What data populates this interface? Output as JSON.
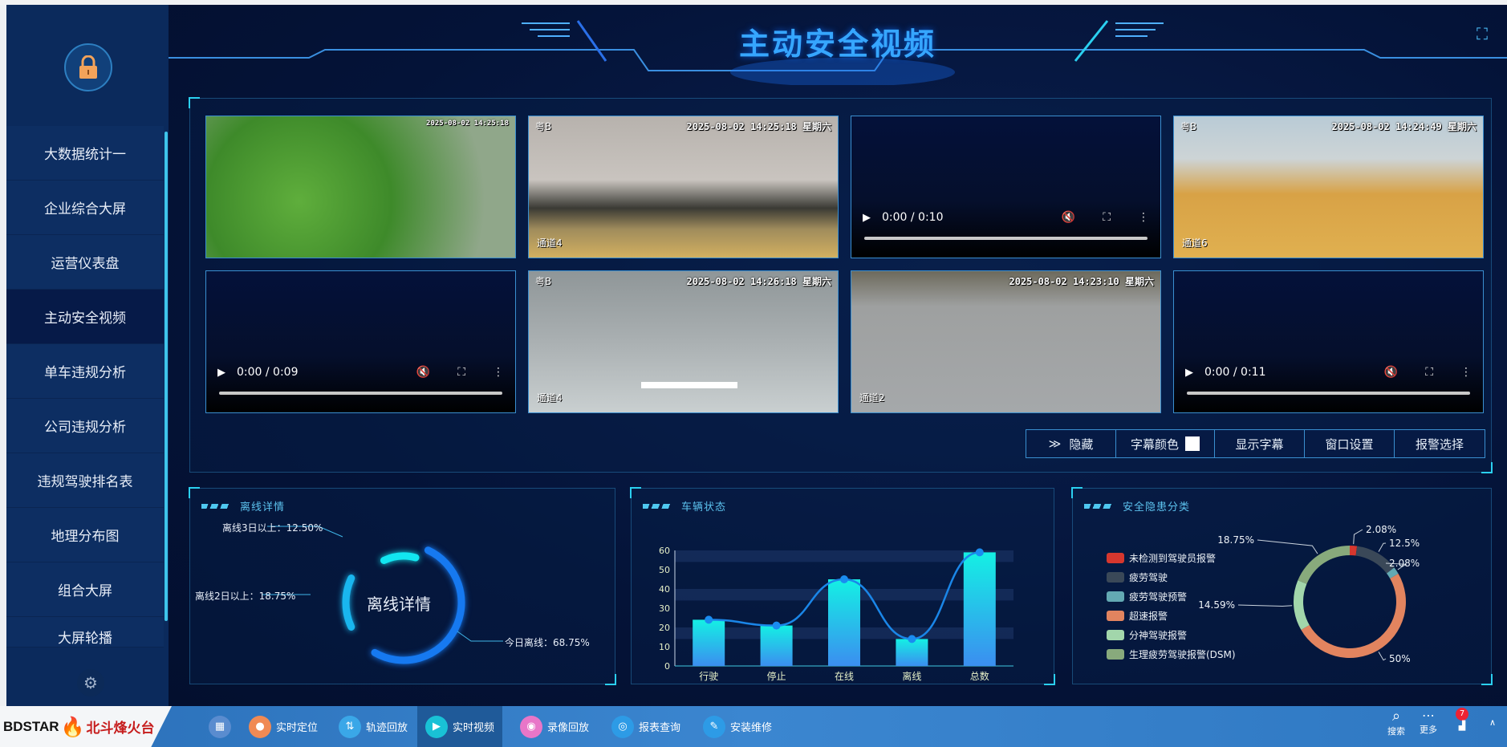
{
  "sidebar": {
    "lock_icon": "lock-icon",
    "items": [
      {
        "label": "大数据统计一"
      },
      {
        "label": "企业综合大屏"
      },
      {
        "label": "运营仪表盘"
      },
      {
        "label": "主动安全视频",
        "active": true
      },
      {
        "label": "单车违规分析"
      },
      {
        "label": "公司违规分析"
      },
      {
        "label": "违规驾驶排名表"
      },
      {
        "label": "地理分布图"
      },
      {
        "label": "组合大屏"
      },
      {
        "label": "大屏轮播"
      }
    ],
    "settings_icon": "gear-icon"
  },
  "header": {
    "title": "主动安全视频",
    "fullscreen_icon": "expand-icon"
  },
  "videos": [
    {
      "type": "image",
      "scene": "foliage",
      "timestamp": "2025-08-02 14:25:18",
      "plate": "",
      "channel": ""
    },
    {
      "type": "image",
      "scene": "sidewalk",
      "timestamp": "2025-08-02 14:25:18 星期六",
      "plate": "粤B",
      "channel": "通道4"
    },
    {
      "type": "player",
      "time": "0:00 / 0:10"
    },
    {
      "type": "image",
      "scene": "yellow-road",
      "timestamp": "2025-08-02 14:24:49 星期六",
      "plate": "粤B",
      "channel": "通道6"
    },
    {
      "type": "player",
      "time": "0:00 / 0:09"
    },
    {
      "type": "image",
      "scene": "grey-road",
      "timestamp": "2025-08-02 14:26:18 星期六",
      "plate": "粤B",
      "channel": "通道4"
    },
    {
      "type": "image",
      "scene": "asphalt",
      "timestamp": "2025-08-02 14:23:10 星期六",
      "plate": "",
      "channel": "通道2"
    },
    {
      "type": "player",
      "time": "0:00 / 0:11"
    }
  ],
  "toolbar": {
    "hide": "隐藏",
    "subtitle_color": "字幕颜色",
    "subtitle_color_value": "#ffffff",
    "show_subtitle": "显示字幕",
    "window_settings": "窗口设置",
    "alarm_select": "报警选择"
  },
  "offline": {
    "title": "离线详情",
    "center": "离线详情",
    "labels": {
      "three_day": "离线3日以上：12.50%",
      "two_day": "离线2日以上：18.75%",
      "today": "今日离线：68.75%"
    }
  },
  "vehicle": {
    "title": "车辆状态"
  },
  "safety": {
    "title": "安全隐患分类"
  },
  "chart_data": [
    {
      "type": "bar",
      "title": "车辆状态",
      "categories": [
        "行驶",
        "停止",
        "在线",
        "离线",
        "总数"
      ],
      "values": [
        24,
        21,
        45,
        14,
        59
      ],
      "ylim": [
        0,
        60
      ],
      "yticks": [
        0,
        10,
        20,
        30,
        40,
        50,
        60
      ],
      "overlay": "smooth line with markers",
      "bar_color": "#1de9e6"
    },
    {
      "type": "pie",
      "title": "安全隐患分类",
      "donut": true,
      "legend": "left",
      "slices": [
        {
          "name": "未检测到驾驶员报警",
          "value": 2.08,
          "label": "2.08%",
          "color": "#d6372e"
        },
        {
          "name": "疲劳驾驶",
          "value": 12.5,
          "label": "12.5%",
          "color": "#3a4858"
        },
        {
          "name": "疲劳驾驶预警",
          "value": 2.08,
          "label": "2.08%",
          "color": "#63a9b3"
        },
        {
          "name": "超速报警",
          "value": 50,
          "label": "50%",
          "color": "#e2845f"
        },
        {
          "name": "分神驾驶报警",
          "value": 14.59,
          "label": "14.59%",
          "color": "#a2d6ab"
        },
        {
          "name": "生理疲劳驾驶报警(DSM)",
          "value": 18.75,
          "label": "18.75%",
          "color": "#88aa7c"
        }
      ]
    }
  ],
  "taskbar": {
    "brand": "BDSTAR",
    "brand_cn": "北斗烽火台",
    "items": [
      {
        "label": "",
        "icon": "apps-icon"
      },
      {
        "label": "实时定位",
        "icon": "location-icon",
        "color": "#f08a54"
      },
      {
        "label": "轨迹回放",
        "icon": "track-icon",
        "color": "#3aa7e8"
      },
      {
        "label": "实时视频",
        "icon": "play-icon",
        "color": "#19c1d6",
        "active": true
      },
      {
        "label": "录像回放",
        "icon": "record-icon",
        "color": "#e876c8"
      },
      {
        "label": "报表查询",
        "icon": "report-icon",
        "color": "#2d9be6"
      },
      {
        "label": "安装维修",
        "icon": "wrench-icon",
        "color": "#2d9be6"
      }
    ],
    "search": "搜索",
    "more": "更多",
    "badge": "7"
  }
}
